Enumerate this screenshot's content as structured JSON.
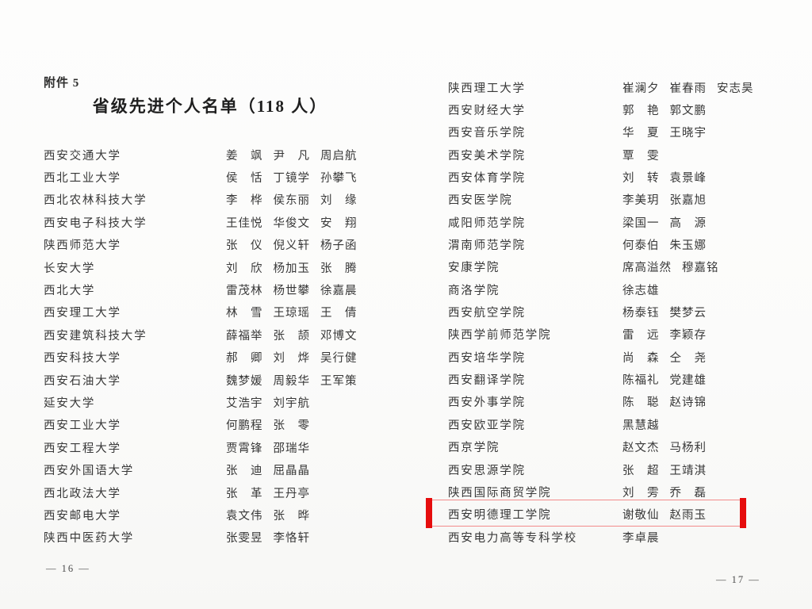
{
  "document": {
    "attachment_label": "附件 5",
    "title": "省级先进个人名单（118 人）",
    "highlight_bar_color": "#e60d0d",
    "highlight_border_color": "#f28b8b",
    "pages": [
      {
        "page_number_label": "— 16 —",
        "rows": [
          {
            "school": "西安交通大学",
            "names": [
              "姜　飒",
              "尹　凡",
              "周启航"
            ]
          },
          {
            "school": "西北工业大学",
            "names": [
              "侯　恬",
              "丁镜学",
              "孙攀飞"
            ]
          },
          {
            "school": "西北农林科技大学",
            "names": [
              "李　桦",
              "侯东丽",
              "刘　缘"
            ]
          },
          {
            "school": "西安电子科技大学",
            "names": [
              "王佳悦",
              "华俊文",
              "安　翔"
            ]
          },
          {
            "school": "陕西师范大学",
            "names": [
              "张　仪",
              "倪义轩",
              "杨子函"
            ]
          },
          {
            "school": "长安大学",
            "names": [
              "刘　欣",
              "杨加玉",
              "张　腾"
            ]
          },
          {
            "school": "西北大学",
            "names": [
              "雷茂林",
              "杨世攀",
              "徐嘉晨"
            ]
          },
          {
            "school": "西安理工大学",
            "names": [
              "林　雪",
              "王琼瑶",
              "王　倩"
            ]
          },
          {
            "school": "西安建筑科技大学",
            "names": [
              "薛福举",
              "张　颉",
              "邓博文"
            ]
          },
          {
            "school": "西安科技大学",
            "names": [
              "郝　卿",
              "刘　烨",
              "吴行健"
            ]
          },
          {
            "school": "西安石油大学",
            "names": [
              "魏梦媛",
              "周毅华",
              "王军策"
            ]
          },
          {
            "school": "延安大学",
            "names": [
              "艾浩宇",
              "刘宇航"
            ]
          },
          {
            "school": "西安工业大学",
            "names": [
              "何鹏程",
              "张　零"
            ]
          },
          {
            "school": "西安工程大学",
            "names": [
              "贾霄锋",
              "邵瑞华"
            ]
          },
          {
            "school": "西安外国语大学",
            "names": [
              "张　迪",
              "屈晶晶"
            ]
          },
          {
            "school": "西北政法大学",
            "names": [
              "张　革",
              "王丹亭"
            ]
          },
          {
            "school": "西安邮电大学",
            "names": [
              "袁文伟",
              "张　晔"
            ]
          },
          {
            "school": "陕西中医药大学",
            "names": [
              "张雯昱",
              "李恪轩"
            ]
          }
        ]
      },
      {
        "page_number_label": "— 17 —",
        "rows": [
          {
            "school": "陕西理工大学",
            "names": [
              "崔澜夕",
              "崔春雨",
              "安志昊"
            ]
          },
          {
            "school": "西安财经大学",
            "names": [
              "郭　艳",
              "郭文鹏"
            ]
          },
          {
            "school": "西安音乐学院",
            "names": [
              "华　夏",
              "王晓宇"
            ]
          },
          {
            "school": "西安美术学院",
            "names": [
              "覃　雯"
            ]
          },
          {
            "school": "西安体育学院",
            "names": [
              "刘　转",
              "袁景峰"
            ]
          },
          {
            "school": "西安医学院",
            "names": [
              "李美玥",
              "张嘉旭"
            ]
          },
          {
            "school": "咸阳师范学院",
            "names": [
              "梁国一",
              "高　源"
            ]
          },
          {
            "school": "渭南师范学院",
            "names": [
              "何泰伯",
              "朱玉娜"
            ]
          },
          {
            "school": "安康学院",
            "names": [
              "席高溢然",
              "穆嘉铭"
            ]
          },
          {
            "school": "商洛学院",
            "names": [
              "徐志雄"
            ]
          },
          {
            "school": "西安航空学院",
            "names": [
              "杨泰钰",
              "樊梦云"
            ]
          },
          {
            "school": "陕西学前师范学院",
            "names": [
              "雷　远",
              "李颖存"
            ]
          },
          {
            "school": "西安培华学院",
            "names": [
              "尚　森",
              "仝　尧"
            ]
          },
          {
            "school": "西安翻译学院",
            "names": [
              "陈福礼",
              "党建雄"
            ]
          },
          {
            "school": "西安外事学院",
            "names": [
              "陈　聪",
              "赵诗锦"
            ]
          },
          {
            "school": "西安欧亚学院",
            "names": [
              "黑慧越"
            ]
          },
          {
            "school": "西京学院",
            "names": [
              "赵文杰",
              "马杨利"
            ]
          },
          {
            "school": "西安思源学院",
            "names": [
              "张　超",
              "王靖淇"
            ]
          },
          {
            "school": "陕西国际商贸学院",
            "names": [
              "刘　雱",
              "乔　磊"
            ]
          },
          {
            "school": "西安明德理工学院",
            "names": [
              "谢敬仙",
              "赵雨玉"
            ],
            "highlighted": true
          },
          {
            "school": "西安电力高等专科学校",
            "names": [
              "李卓晨"
            ]
          }
        ]
      }
    ]
  }
}
